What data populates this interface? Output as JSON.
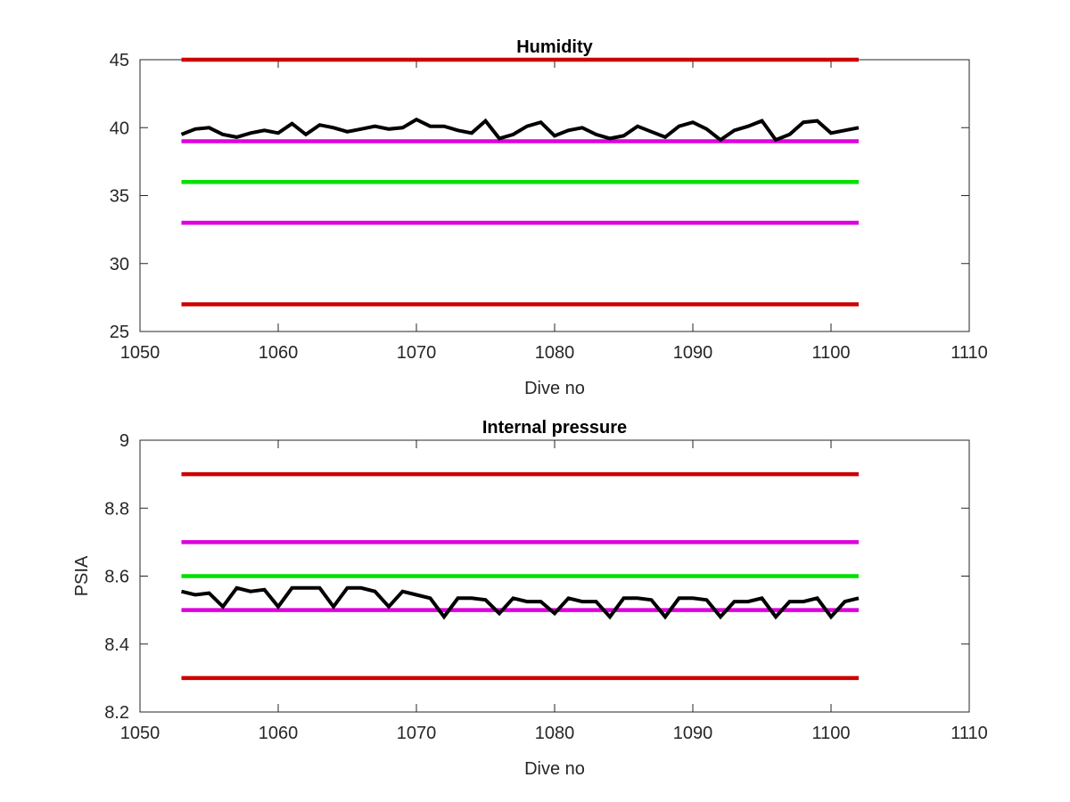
{
  "chart_data": [
    {
      "type": "line",
      "title": "Humidity",
      "xlabel": "Dive no",
      "ylabel": "",
      "xlim": [
        1050,
        1110
      ],
      "ylim": [
        25,
        45
      ],
      "xticks": [
        "1050",
        "1060",
        "1070",
        "1080",
        "1090",
        "1100",
        "1110"
      ],
      "yticks": [
        "25",
        "30",
        "35",
        "40",
        "45"
      ],
      "grid": false,
      "reference_lines": [
        {
          "y": 45,
          "x": [
            1053,
            1102
          ],
          "color": "#cc0000"
        },
        {
          "y": 39,
          "x": [
            1053,
            1102
          ],
          "color": "#dd00dd"
        },
        {
          "y": 36,
          "x": [
            1053,
            1102
          ],
          "color": "#00e000"
        },
        {
          "y": 33,
          "x": [
            1053,
            1102
          ],
          "color": "#dd00dd"
        },
        {
          "y": 27,
          "x": [
            1053,
            1102
          ],
          "color": "#cc0000"
        }
      ],
      "series": [
        {
          "color": "#000000",
          "x": [
            1053,
            1054,
            1055,
            1056,
            1057,
            1058,
            1059,
            1060,
            1061,
            1062,
            1063,
            1064,
            1065,
            1066,
            1067,
            1068,
            1069,
            1070,
            1071,
            1072,
            1073,
            1074,
            1075,
            1076,
            1077,
            1078,
            1079,
            1080,
            1081,
            1082,
            1083,
            1084,
            1085,
            1086,
            1087,
            1088,
            1089,
            1090,
            1091,
            1092,
            1093,
            1094,
            1095,
            1096,
            1097,
            1098,
            1099,
            1100,
            1101,
            1102
          ],
          "y": [
            39.5,
            39.9,
            40.0,
            39.5,
            39.3,
            39.6,
            39.8,
            39.6,
            40.3,
            39.5,
            40.2,
            40.0,
            39.7,
            39.9,
            40.1,
            39.9,
            40.0,
            40.6,
            40.1,
            40.1,
            39.8,
            39.6,
            40.5,
            39.2,
            39.5,
            40.1,
            40.4,
            39.4,
            39.8,
            40.0,
            39.5,
            39.2,
            39.4,
            40.1,
            39.7,
            39.3,
            40.1,
            40.4,
            39.9,
            39.1,
            39.8,
            40.1,
            40.5,
            39.1,
            39.5,
            40.4,
            40.5,
            39.6,
            39.8,
            40.0
          ]
        }
      ]
    },
    {
      "type": "line",
      "title": "Internal pressure",
      "xlabel": "Dive no",
      "ylabel": "PSIA",
      "xlim": [
        1050,
        1110
      ],
      "ylim": [
        8.2,
        9.0
      ],
      "xticks": [
        "1050",
        "1060",
        "1070",
        "1080",
        "1090",
        "1100",
        "1110"
      ],
      "yticks": [
        "8.2",
        "8.4",
        "8.6",
        "8.8",
        "9"
      ],
      "grid": false,
      "reference_lines": [
        {
          "y": 8.9,
          "x": [
            1053,
            1102
          ],
          "color": "#cc0000"
        },
        {
          "y": 8.7,
          "x": [
            1053,
            1102
          ],
          "color": "#dd00dd"
        },
        {
          "y": 8.6,
          "x": [
            1053,
            1102
          ],
          "color": "#00e000"
        },
        {
          "y": 8.5,
          "x": [
            1053,
            1102
          ],
          "color": "#dd00dd"
        },
        {
          "y": 8.3,
          "x": [
            1053,
            1102
          ],
          "color": "#cc0000"
        }
      ],
      "series": [
        {
          "color": "#000000",
          "x": [
            1053,
            1054,
            1055,
            1056,
            1057,
            1058,
            1059,
            1060,
            1061,
            1062,
            1063,
            1064,
            1065,
            1066,
            1067,
            1068,
            1069,
            1070,
            1071,
            1072,
            1073,
            1074,
            1075,
            1076,
            1077,
            1078,
            1079,
            1080,
            1081,
            1082,
            1083,
            1084,
            1085,
            1086,
            1087,
            1088,
            1089,
            1090,
            1091,
            1092,
            1093,
            1094,
            1095,
            1096,
            1097,
            1098,
            1099,
            1100,
            1101,
            1102
          ],
          "y": [
            8.555,
            8.545,
            8.55,
            8.51,
            8.565,
            8.555,
            8.56,
            8.51,
            8.565,
            8.565,
            8.565,
            8.51,
            8.565,
            8.565,
            8.555,
            8.51,
            8.555,
            8.545,
            8.535,
            8.48,
            8.535,
            8.535,
            8.53,
            8.49,
            8.535,
            8.525,
            8.525,
            8.49,
            8.535,
            8.525,
            8.525,
            8.48,
            8.535,
            8.535,
            8.53,
            8.48,
            8.535,
            8.535,
            8.53,
            8.48,
            8.525,
            8.525,
            8.535,
            8.48,
            8.525,
            8.525,
            8.535,
            8.48,
            8.525,
            8.535
          ]
        }
      ]
    }
  ]
}
